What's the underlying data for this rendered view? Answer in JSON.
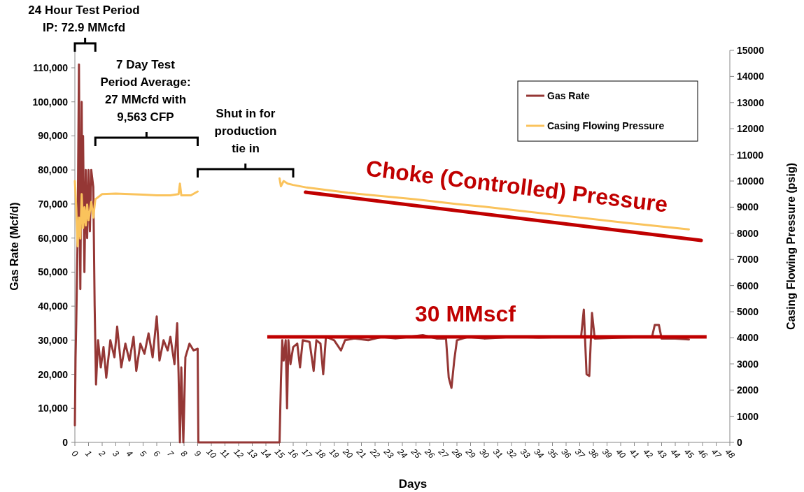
{
  "chart_data": {
    "type": "line",
    "xlabel": "Days",
    "ylabel": "Gas Rate (Mcf/d)",
    "y2label": "Casing Flowing Pressure (psig)",
    "xlim": [
      0,
      48
    ],
    "xticks": [
      0,
      1,
      2,
      3,
      4,
      5,
      6,
      7,
      8,
      9,
      10,
      11,
      12,
      13,
      14,
      15,
      16,
      17,
      18,
      19,
      20,
      21,
      22,
      23,
      24,
      25,
      26,
      27,
      28,
      29,
      30,
      31,
      32,
      33,
      34,
      35,
      36,
      37,
      38,
      39,
      40,
      41,
      42,
      43,
      44,
      45,
      46,
      47,
      48
    ],
    "ylim": [
      0,
      115000
    ],
    "yticks": [
      0,
      {
        "value": 10000,
        "label": "10,000"
      },
      {
        "value": 20000,
        "label": "20,000"
      },
      {
        "value": 30000,
        "label": "30,000"
      },
      {
        "value": 40000,
        "label": "40,000"
      },
      {
        "value": 50000,
        "label": "50,000"
      },
      {
        "value": 60000,
        "label": "60,000"
      },
      {
        "value": 70000,
        "label": "70,000"
      },
      {
        "value": 80000,
        "label": "80,000"
      },
      {
        "value": 90000,
        "label": "90,000"
      },
      {
        "value": 100000,
        "label": "100,000"
      },
      {
        "value": 110000,
        "label": "110,000"
      }
    ],
    "y2lim": [
      0,
      15000
    ],
    "y2ticks": [
      0,
      1000,
      2000,
      3000,
      4000,
      5000,
      6000,
      7000,
      8000,
      9000,
      10000,
      11000,
      12000,
      13000,
      14000,
      15000
    ],
    "grid": false,
    "legend": "top right",
    "marker": "none",
    "line_style": "solid",
    "series": [
      {
        "name": "Gas Rate",
        "color": "#953735",
        "x": [
          0,
          0.05,
          0.1,
          0.2,
          0.3,
          0.35,
          0.4,
          0.5,
          0.55,
          0.6,
          0.7,
          0.8,
          0.9,
          1.0,
          1.1,
          1.2,
          1.35,
          1.45,
          1.55,
          1.7,
          1.9,
          2.1,
          2.3,
          2.6,
          2.9,
          3.1,
          3.4,
          3.7,
          4.0,
          4.3,
          4.5,
          4.8,
          5.1,
          5.4,
          5.7,
          6.0,
          6.2,
          6.5,
          6.8,
          7.0,
          7.3,
          7.5,
          7.6,
          7.7,
          7.8,
          7.95,
          8.1,
          8.4,
          8.7,
          9.0,
          9.05,
          15.0,
          15.1,
          15.2,
          15.3,
          15.45,
          15.55,
          15.65,
          15.8,
          16.0,
          16.3,
          16.5,
          16.7,
          17.2,
          17.5,
          17.7,
          18.0,
          18.2,
          18.4,
          19.0,
          19.5,
          19.8,
          20.5,
          21.5,
          22.5,
          23.5,
          24.5,
          25.5,
          26.5,
          27.2,
          27.4,
          27.6,
          27.8,
          28.0,
          28.8,
          30,
          32,
          34,
          36,
          37.1,
          37.3,
          37.5,
          37.7,
          37.9,
          38.1,
          40,
          42,
          42.3,
          42.5,
          42.8,
          43,
          44,
          45
        ],
        "values": [
          5000,
          25000,
          35000,
          60000,
          111000,
          70000,
          45000,
          100000,
          65000,
          90000,
          50000,
          80000,
          60000,
          80000,
          62000,
          80000,
          75000,
          40000,
          17000,
          30000,
          22000,
          28000,
          19000,
          30000,
          25000,
          34000,
          22000,
          29000,
          24000,
          31000,
          21000,
          29000,
          26000,
          32000,
          25000,
          37000,
          24000,
          30000,
          27000,
          31000,
          23000,
          35000,
          20000,
          0,
          22000,
          0,
          25000,
          29000,
          27000,
          27500,
          0,
          0,
          18000,
          30000,
          24000,
          30000,
          10000,
          30000,
          23000,
          28000,
          29000,
          22000,
          30000,
          29500,
          21000,
          30000,
          29000,
          20000,
          31000,
          30000,
          27000,
          30000,
          30500,
          30000,
          31000,
          30500,
          31000,
          31500,
          30500,
          30500,
          19000,
          16000,
          24000,
          30000,
          31000,
          30500,
          31000,
          30800,
          31000,
          31000,
          39000,
          20000,
          19500,
          38000,
          30500,
          30800,
          31000,
          31000,
          34500,
          34500,
          30500,
          30500,
          30200
        ]
      },
      {
        "name": "Casing Flowing Pressure",
        "color": "#fac35c",
        "axis": "y2",
        "x": [
          0,
          0.1,
          0.2,
          0.3,
          0.4,
          0.5,
          0.6,
          0.7,
          0.8,
          0.9,
          1.0,
          1.2,
          1.35,
          1.5,
          2,
          3,
          4,
          5,
          6,
          7,
          7.6,
          7.7,
          7.8,
          8.5,
          9,
          9.05,
          15,
          15.1,
          15.3,
          15.6,
          16,
          17,
          20,
          25,
          28,
          30,
          35,
          40,
          45
        ],
        "values": [
          10000,
          9000,
          7500,
          8600,
          7800,
          9500,
          8200,
          9000,
          8300,
          9100,
          8500,
          9200,
          8600,
          9300,
          9500,
          9520,
          9500,
          9480,
          9450,
          9450,
          9500,
          9900,
          9450,
          9450,
          9600,
          null,
          10100,
          9800,
          10000,
          9900,
          9850,
          9750,
          9550,
          9300,
          9120,
          9020,
          8720,
          8420,
          8150
        ]
      },
      {
        "name": "Choke (Controlled) Pressure",
        "color": "#c00000",
        "axis": "y2",
        "x": [
          16.9,
          45.9
        ],
        "values": [
          9570,
          7730
        ]
      }
    ],
    "ref_lines": [
      {
        "axis": "y",
        "value": 31000,
        "label": "30 MMscf",
        "color": "#c00000",
        "line_style": "solid"
      }
    ],
    "annotations": [
      "24 Hour Test Period\nIP: 72.9 MMcfd",
      "7 Day Test\nPeriod Average:\n27 MMcfd with\n9,563 CFP",
      "Shut in for\nproduction\ntie in"
    ]
  }
}
